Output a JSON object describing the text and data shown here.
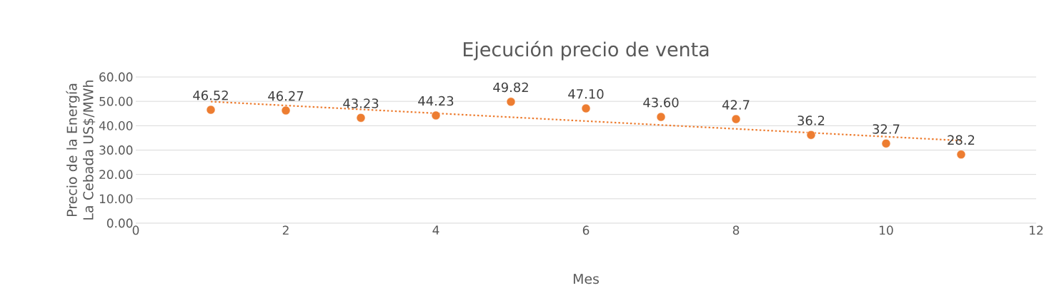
{
  "chart_data": {
    "type": "scatter",
    "title": "Ejecución precio de venta",
    "xlabel": "Mes",
    "ylabel": "Precio de la Energía La Cebada US$/MWh",
    "xlim": [
      0,
      12
    ],
    "xticks": [
      0,
      2,
      4,
      6,
      8,
      10,
      12
    ],
    "ylim": [
      0,
      60
    ],
    "yticks": [
      {
        "value": 0,
        "label": "0.00"
      },
      {
        "value": 10,
        "label": "10.00"
      },
      {
        "value": 20,
        "label": "20.00"
      },
      {
        "value": 30,
        "label": "30.00"
      },
      {
        "value": 40,
        "label": "40.00"
      },
      {
        "value": 50,
        "label": "50.00"
      },
      {
        "value": 60,
        "label": "60.00"
      }
    ],
    "grid": "y",
    "marker": "circle",
    "series": [
      {
        "color": "#ed7d31",
        "x": [
          1,
          2,
          3,
          4,
          5,
          6,
          7,
          8,
          9,
          10,
          11
        ],
        "values": [
          46.52,
          46.27,
          43.23,
          44.23,
          49.82,
          47.1,
          43.6,
          42.7,
          36.2,
          32.7,
          28.2
        ],
        "value_labels": [
          "46.52",
          "46.27",
          "43.23",
          "44.23",
          "49.82",
          "47.10",
          "43.60",
          "42.7",
          "36.2",
          "32.7",
          "28.2"
        ]
      },
      {
        "type": "line",
        "line_style": "dotted",
        "marker": "none",
        "color": "#ed7d31",
        "x": [
          1,
          11
        ],
        "values": [
          49.9,
          33.9
        ]
      }
    ]
  }
}
